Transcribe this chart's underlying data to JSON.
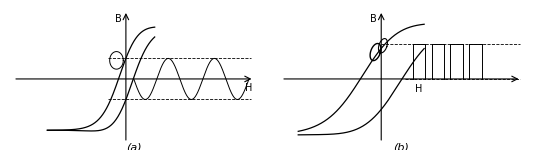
{
  "fig_width": 5.35,
  "fig_height": 1.5,
  "dpi": 100,
  "bg_color": "#ffffff",
  "line_color": "#000000",
  "label_a": "(a)",
  "label_b": "(b)",
  "axis_label_B": "B",
  "axis_label_H": "H"
}
